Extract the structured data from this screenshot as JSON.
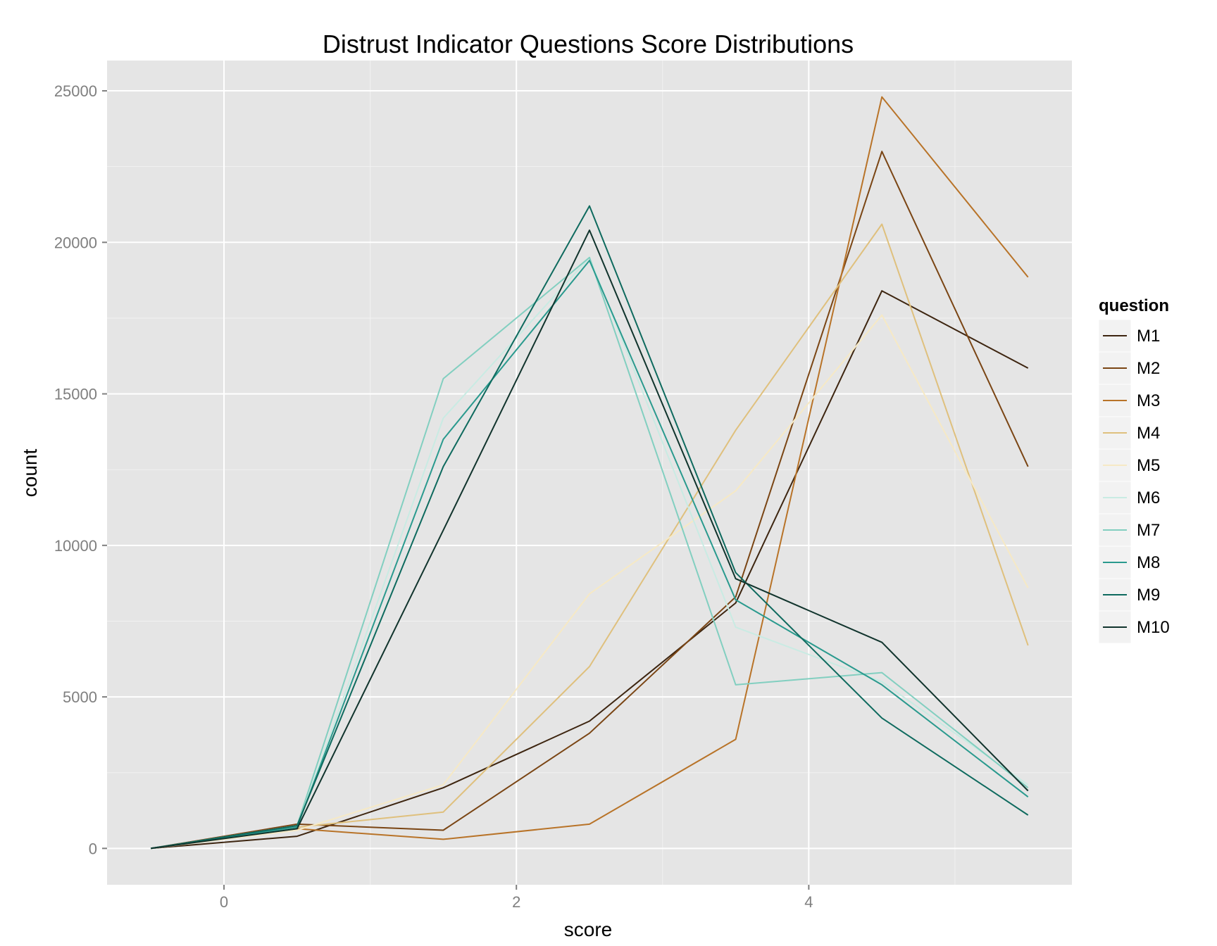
{
  "chart_data": {
    "type": "line",
    "title": "Distrust Indicator Questions Score Distributions",
    "xlabel": "score",
    "ylabel": "count",
    "xlim": [
      -0.8,
      5.8
    ],
    "ylim": [
      -1200,
      26000
    ],
    "x_ticks": [
      0,
      2,
      4
    ],
    "x_tick_labels": [
      "0",
      "2",
      "4"
    ],
    "y_ticks": [
      0,
      5000,
      10000,
      15000,
      20000,
      25000
    ],
    "y_tick_labels": [
      "0",
      "5000",
      "10000",
      "15000",
      "20000",
      "25000"
    ],
    "grid": true,
    "legend": {
      "title": "question",
      "position": "right"
    },
    "x": [
      -0.5,
      0.5,
      1.5,
      2.5,
      3.5,
      4.5,
      5.5
    ],
    "series": [
      {
        "name": "M1",
        "color": "#3d2510",
        "values": [
          0,
          400,
          2000,
          4200,
          8100,
          18400,
          15850
        ]
      },
      {
        "name": "M2",
        "color": "#7a4514",
        "values": [
          0,
          800,
          600,
          3800,
          8300,
          23000,
          12600
        ]
      },
      {
        "name": "M3",
        "color": "#b87328",
        "values": [
          0,
          650,
          300,
          800,
          3600,
          24800,
          18850
        ]
      },
      {
        "name": "M4",
        "color": "#dfc07d",
        "values": [
          0,
          700,
          1200,
          6000,
          13800,
          20600,
          6700
        ]
      },
      {
        "name": "M5",
        "color": "#f6e9c5",
        "values": [
          0,
          600,
          2100,
          8400,
          11800,
          17600,
          8600
        ]
      },
      {
        "name": "M6",
        "color": "#c9ebe3",
        "values": [
          0,
          700,
          14200,
          19500,
          7300,
          5500,
          2100
        ]
      },
      {
        "name": "M7",
        "color": "#82cfc0",
        "values": [
          0,
          750,
          15500,
          19500,
          5400,
          5800,
          2000
        ]
      },
      {
        "name": "M8",
        "color": "#2a9a8e",
        "values": [
          0,
          700,
          13500,
          19400,
          8200,
          5400,
          1700
        ]
      },
      {
        "name": "M9",
        "color": "#0e6a5e",
        "values": [
          0,
          750,
          12600,
          21200,
          9100,
          4300,
          1100
        ]
      },
      {
        "name": "M10",
        "color": "#11342d",
        "values": [
          0,
          650,
          10500,
          20400,
          8900,
          6800,
          1900
        ]
      }
    ]
  }
}
